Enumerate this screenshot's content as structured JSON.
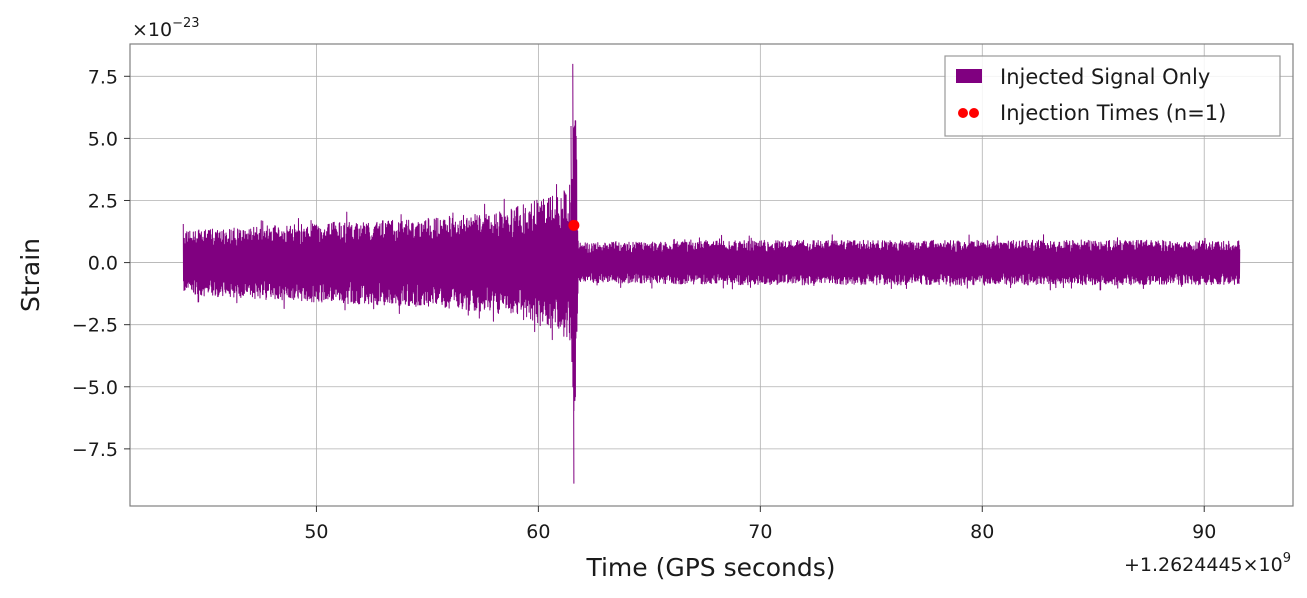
{
  "chart_data": {
    "type": "line",
    "xlabel": "Time (GPS seconds)",
    "ylabel": "Strain",
    "x_offset_label": "+1.2624445×10",
    "x_offset_exp": "9",
    "y_multiplier_label": "×10",
    "y_multiplier_exp": "−23",
    "xlim": [
      41.6,
      94.0
    ],
    "ylim": [
      -9.8,
      8.8
    ],
    "xticks": [
      50,
      60,
      70,
      80,
      90
    ],
    "yticks": [
      -7.5,
      -5.0,
      -2.5,
      0.0,
      2.5,
      5.0,
      7.5
    ],
    "xtick_labels": [
      "50",
      "60",
      "70",
      "80",
      "90"
    ],
    "ytick_labels": [
      "−7.5",
      "−5.0",
      "−2.5",
      "0.0",
      "2.5",
      "5.0",
      "7.5"
    ],
    "grid": true,
    "legend_position": "top-right",
    "series": [
      {
        "name": "Injected Signal Only",
        "color": "#800080",
        "kind": "line",
        "x_start": 44.0,
        "x_end": 91.6,
        "envelope": [
          {
            "x": 44.0,
            "amp": 1.3
          },
          {
            "x": 50.0,
            "amp": 1.6
          },
          {
            "x": 55.0,
            "amp": 1.8
          },
          {
            "x": 58.0,
            "amp": 2.0
          },
          {
            "x": 59.5,
            "amp": 2.4
          },
          {
            "x": 61.0,
            "amp": 2.8
          },
          {
            "x": 61.5,
            "amp": 3.5
          },
          {
            "x": 61.65,
            "amp": 8.0
          },
          {
            "x": 61.8,
            "amp": 0.8
          },
          {
            "x": 70.0,
            "amp": 0.9
          },
          {
            "x": 80.0,
            "amp": 0.9
          },
          {
            "x": 91.6,
            "amp": 0.9
          }
        ],
        "peak": {
          "x": 61.55,
          "max": 8.0,
          "min": -8.9
        }
      },
      {
        "name": "Injection Times (n=1)",
        "color": "#ff0000",
        "kind": "scatter",
        "points": [
          {
            "x": 61.6,
            "y": 1.5
          }
        ]
      }
    ]
  }
}
